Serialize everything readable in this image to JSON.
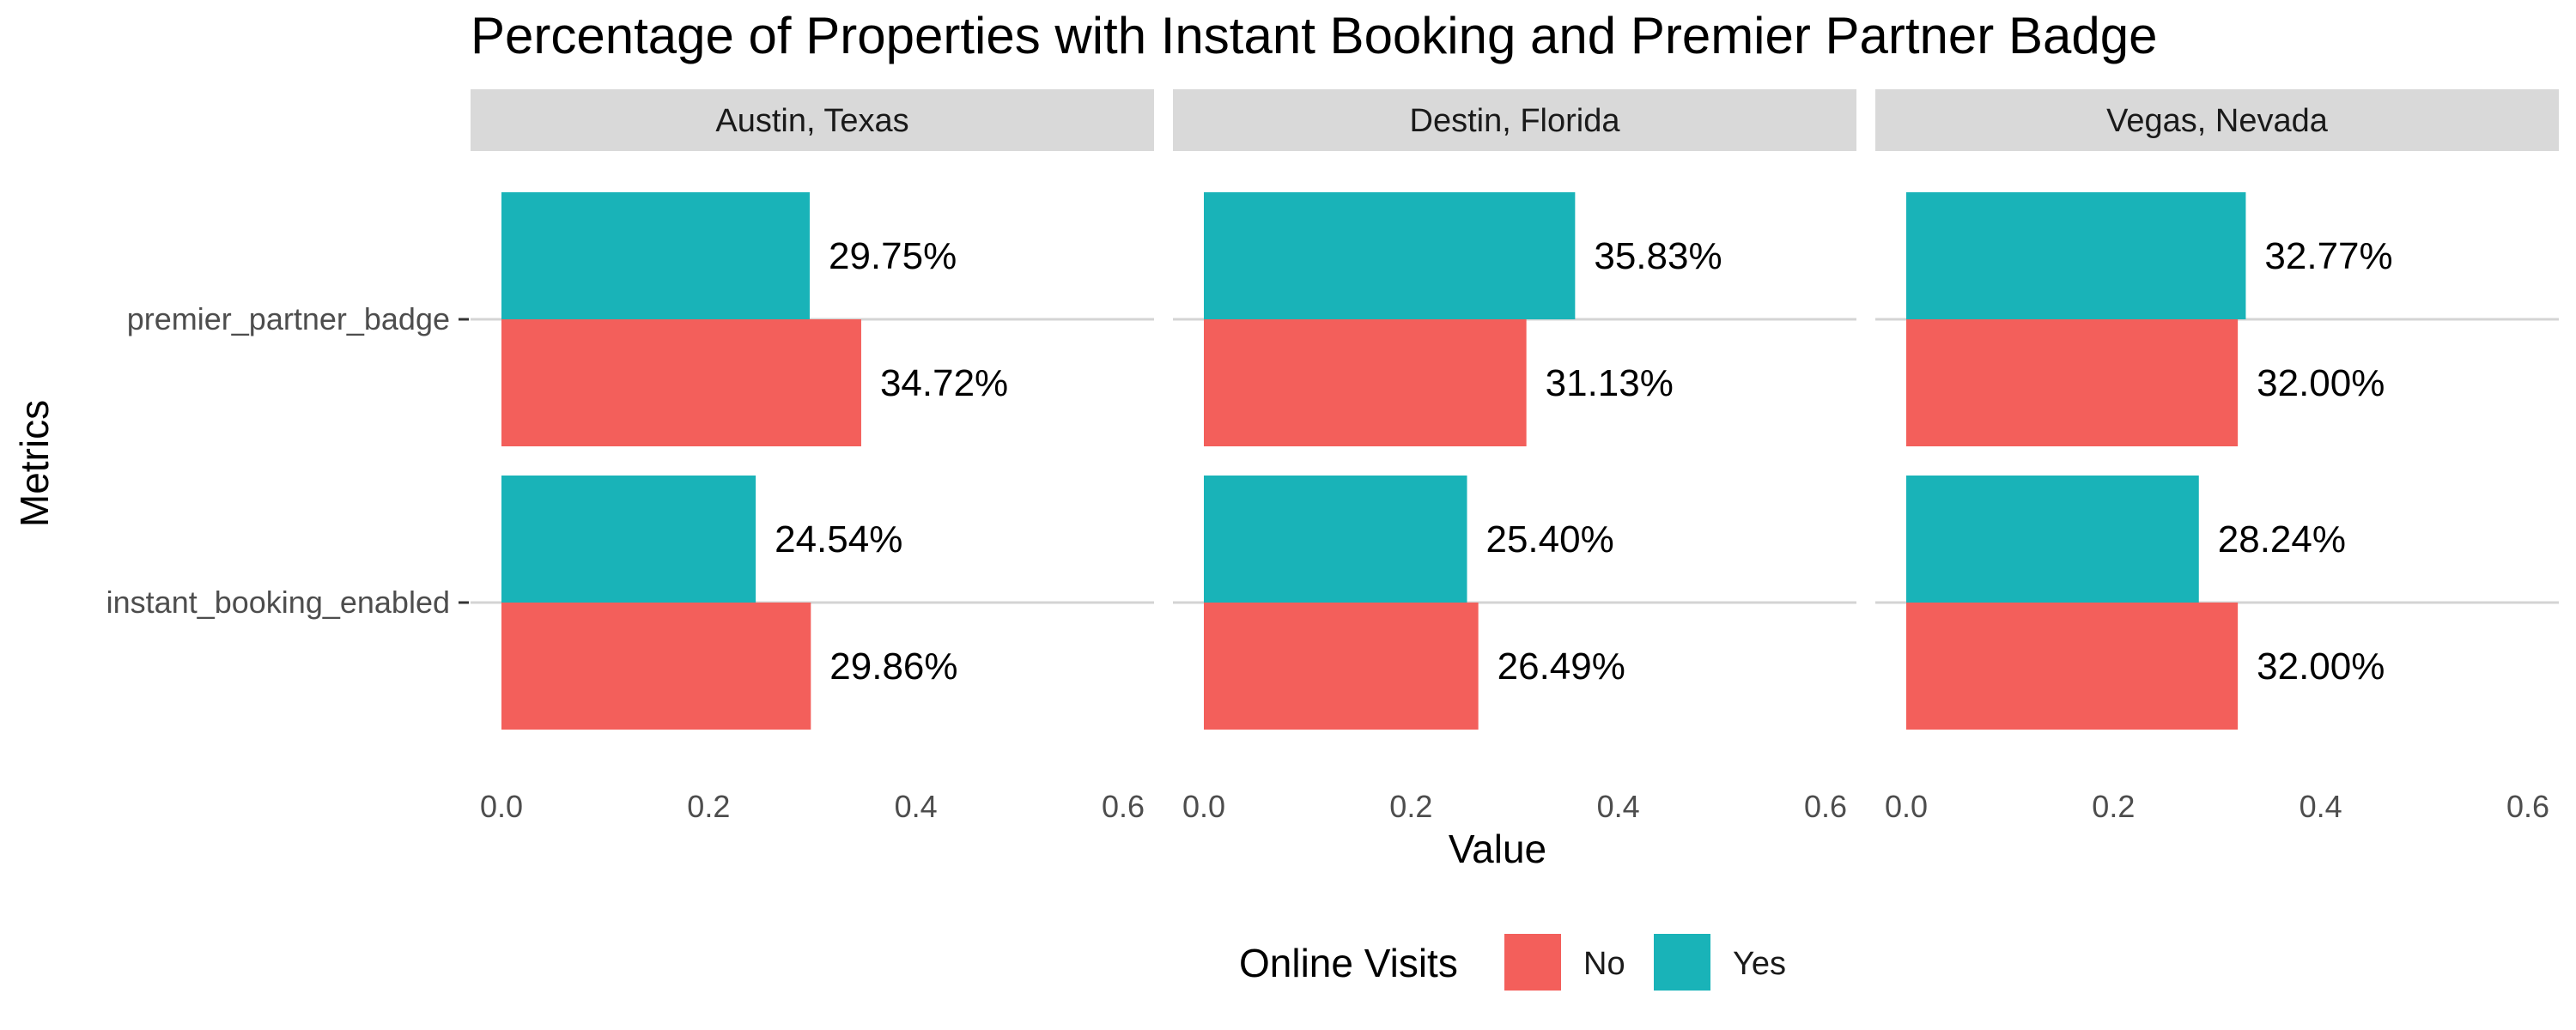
{
  "chart_data": {
    "type": "bar",
    "orientation": "horizontal",
    "title": "Percentage of Properties with Instant Booking and Premier Partner Badge",
    "xlabel": "Value",
    "ylabel": "Metrics",
    "xlim": [
      0,
      0.6
    ],
    "x_ticks": [
      "0.0",
      "0.2",
      "0.4",
      "0.6"
    ],
    "categories": [
      "premier_partner_badge",
      "instant_booking_enabled"
    ],
    "legend": {
      "title": "Online Visits",
      "position": "bottom"
    },
    "grid": true,
    "series_colors": {
      "No": "#F35F5B",
      "Yes": "#19B3B8"
    },
    "facets": [
      {
        "name": "Austin, Texas",
        "series": [
          {
            "name": "Yes",
            "values": [
              0.2975,
              0.2454
            ],
            "labels": [
              "29.75%",
              "24.54%"
            ]
          },
          {
            "name": "No",
            "values": [
              0.3472,
              0.2986
            ],
            "labels": [
              "34.72%",
              "29.86%"
            ]
          }
        ]
      },
      {
        "name": "Destin, Florida",
        "series": [
          {
            "name": "Yes",
            "values": [
              0.3583,
              0.254
            ],
            "labels": [
              "35.83%",
              "25.40%"
            ]
          },
          {
            "name": "No",
            "values": [
              0.3113,
              0.2649
            ],
            "labels": [
              "31.13%",
              "26.49%"
            ]
          }
        ]
      },
      {
        "name": "Vegas, Nevada",
        "series": [
          {
            "name": "Yes",
            "values": [
              0.3277,
              0.2824
            ],
            "labels": [
              "32.77%",
              "28.24%"
            ]
          },
          {
            "name": "No",
            "values": [
              0.32,
              0.32
            ],
            "labels": [
              "32.00%",
              "32.00%"
            ]
          }
        ]
      }
    ]
  }
}
